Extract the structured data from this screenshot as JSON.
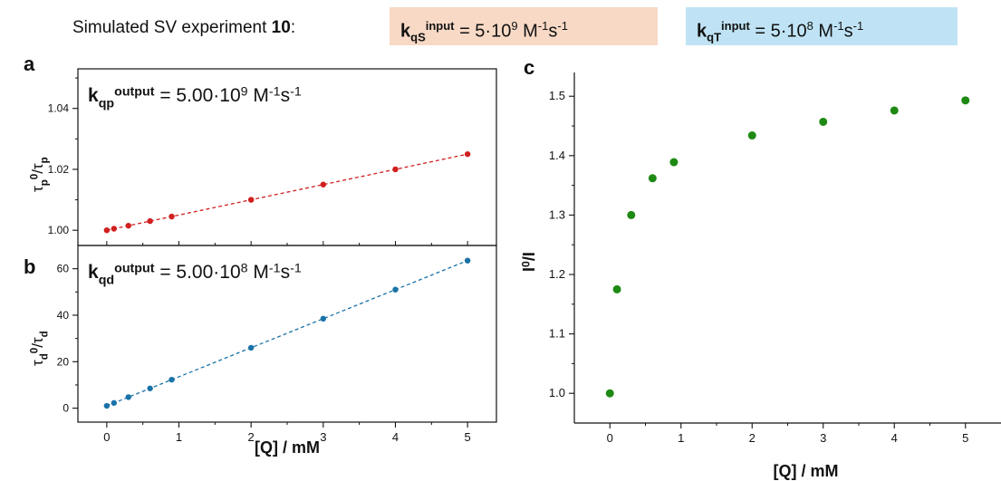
{
  "header": {
    "text": "Simulated SV experiment",
    "number": "10",
    "colon": ":",
    "box_s": {
      "k": "k",
      "sub": "qS",
      "sup": "input",
      "eq": " = 5·10",
      "exp": "9",
      "unit1": " M",
      "unit1_exp": "-1",
      "unit2": "s",
      "unit2_exp": "-1",
      "color": "#f8d9c6"
    },
    "box_t": {
      "k": "k",
      "sub": "qT",
      "sup": "input",
      "eq": " = 5·10",
      "exp": "8",
      "unit1": " M",
      "unit1_exp": "-1",
      "unit2": "s",
      "unit2_exp": "-1",
      "color": "#bfe3f4"
    }
  },
  "chart_data": [
    {
      "panel": "a",
      "type": "scatter",
      "fit_line": "dashed",
      "color": "#d11f1f",
      "ylabel": "τp0/τp",
      "annotation": {
        "k": "k",
        "sub": "qp",
        "sup": "output",
        "eq": " = 5.00·10",
        "exp": "9",
        "unit": " M-1s-1"
      },
      "xlim": [
        -0.4,
        5.4
      ],
      "ylim": [
        0.995,
        1.053
      ],
      "yticks": [
        1.0,
        1.02,
        1.04
      ],
      "ytick_labels": [
        "1.00",
        "1.02",
        "1.04"
      ],
      "x": [
        0,
        0.1,
        0.3,
        0.6,
        0.9,
        2,
        3,
        4,
        5
      ],
      "y": [
        1.0,
        1.0005,
        1.0015,
        1.003,
        1.0045,
        1.01,
        1.015,
        1.02,
        1.025
      ]
    },
    {
      "panel": "b",
      "type": "scatter",
      "fit_line": "dashed",
      "color": "#1a73a8",
      "ylabel": "τd0/τd",
      "annotation": {
        "k": "k",
        "sub": "qd",
        "sup": "output",
        "eq": " = 5.00·10",
        "exp": "8",
        "unit": " M-1s-1"
      },
      "xlabel": "[Q] / mM",
      "xlim": [
        -0.4,
        5.4
      ],
      "ylim": [
        -6,
        70
      ],
      "xticks": [
        0,
        1,
        2,
        3,
        4,
        5
      ],
      "xtick_labels": [
        "0",
        "1",
        "2",
        "3",
        "4",
        "5"
      ],
      "yticks": [
        0,
        20,
        40,
        60
      ],
      "ytick_labels": [
        "0",
        "20",
        "40",
        "60"
      ],
      "x": [
        0,
        0.1,
        0.3,
        0.6,
        0.9,
        2,
        3,
        4,
        5
      ],
      "y": [
        1.0,
        2.25,
        4.75,
        8.5,
        12.25,
        26.0,
        38.5,
        51.0,
        63.5
      ]
    },
    {
      "panel": "c",
      "type": "scatter",
      "color": "#1e8a14",
      "ylabel": "I0/I",
      "xlabel": "[Q] / mM",
      "xlim": [
        -0.5,
        5.5
      ],
      "ylim": [
        0.95,
        1.54
      ],
      "xticks": [
        0,
        1,
        2,
        3,
        4,
        5
      ],
      "xtick_labels": [
        "0",
        "1",
        "2",
        "3",
        "4",
        "5"
      ],
      "yticks": [
        1.0,
        1.1,
        1.2,
        1.3,
        1.4,
        1.5
      ],
      "ytick_labels": [
        "1.0",
        "1.1",
        "1.2",
        "1.3",
        "1.4",
        "1.5"
      ],
      "x": [
        0,
        0.1,
        0.3,
        0.6,
        0.9,
        2,
        3,
        4,
        5
      ],
      "y": [
        1.0,
        1.175,
        1.3,
        1.362,
        1.389,
        1.434,
        1.457,
        1.476,
        1.493
      ]
    }
  ]
}
